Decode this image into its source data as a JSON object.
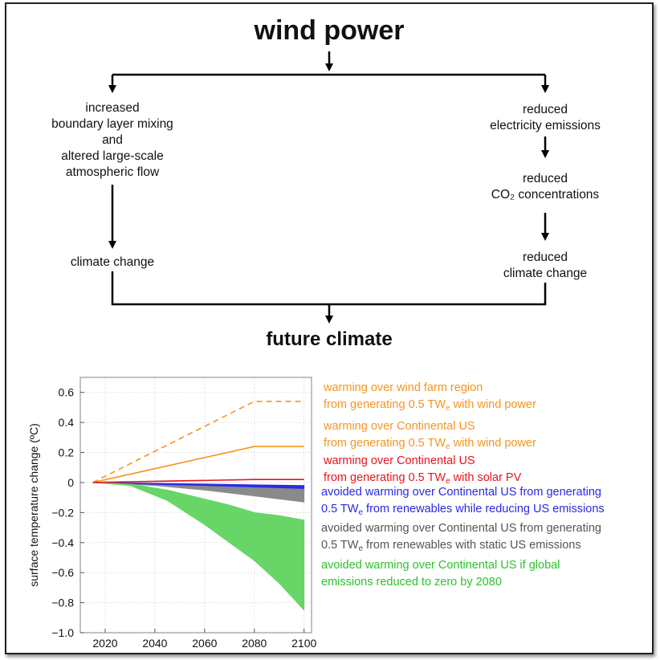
{
  "diagram": {
    "title": "wind power",
    "left_top": [
      "increased",
      "boundary layer mixing",
      "and",
      "altered large-scale",
      "atmospheric flow"
    ],
    "left_bottom": "climate change",
    "right_1": [
      "reduced",
      "electricity emissions"
    ],
    "right_2": [
      "reduced",
      "CO₂ concentrations"
    ],
    "right_3": [
      "reduced",
      "climate change"
    ],
    "bottom_title": "future climate"
  },
  "colors": {
    "orange": "#f7941d",
    "red": "#e8141c",
    "blue": "#2a2ae6",
    "gray": "#8a8a8a",
    "green": "#5fd45f",
    "gray_text": "#555555",
    "green_text": "#2ec02e"
  },
  "legend": {
    "wind_region": {
      "line1": "warming over wind farm region",
      "line2_pre": "from generating 0.5 TW",
      "line2_sub": "e",
      "line2_post": " with wind power"
    },
    "wind_us": {
      "line1": "warming over Continental US",
      "line2_pre": "from generating 0.5 TW",
      "line2_sub": "e",
      "line2_post": " with wind power"
    },
    "solar_us": {
      "line1": "warming over Continental US",
      "line2_pre": "from generating 0.5 TW",
      "line2_sub": "e",
      "line2_post": " with solar PV"
    },
    "renew_reduce": {
      "line1": "avoided warming over Continental US from generating",
      "line2_pre": "0.5 TW",
      "line2_sub": "e",
      "line2_post": " from renewables while reducing US emissions"
    },
    "renew_static": {
      "line1": "avoided warming over Continental US from generating",
      "line2_pre": "0.5 TW",
      "line2_sub": "e",
      "line2_post": " from renewables with static US emissions"
    },
    "global_zero": {
      "line1": "avoided warming over Continental US if global",
      "line2": "emissions reduced to zero by 2080"
    }
  },
  "chart_data": {
    "type": "line",
    "ylabel": "surface temperature change (ºC)",
    "xlabel": "",
    "xlim": [
      2010,
      2103
    ],
    "ylim": [
      -1.0,
      0.7
    ],
    "xticks": [
      2020,
      2040,
      2060,
      2080,
      2100
    ],
    "yticks": [
      0.6,
      0.4,
      0.2,
      0,
      -0.2,
      -0.4,
      -0.6,
      -0.8,
      -1.0
    ],
    "ytick_labels": [
      "0.6",
      "0.4",
      "0.2",
      "0",
      "−0.2",
      "−0.4",
      "−0.6",
      "−0.8",
      "−1.0"
    ],
    "grid": true,
    "series": [
      {
        "name": "warming over wind farm region",
        "style": "dashed",
        "color": "#f7941d",
        "x": [
          2015,
          2080,
          2100
        ],
        "y": [
          0,
          0.54,
          0.54
        ]
      },
      {
        "name": "warming over Continental US (wind power)",
        "style": "solid",
        "color": "#f7941d",
        "x": [
          2015,
          2080,
          2100
        ],
        "y": [
          0,
          0.24,
          0.24
        ]
      },
      {
        "name": "warming over Continental US (solar PV)",
        "style": "solid",
        "color": "#e8141c",
        "x": [
          2015,
          2080,
          2100
        ],
        "y": [
          0,
          0.02,
          0.02
        ]
      }
    ],
    "bands": [
      {
        "name": "avoided warming (renewables, static US emissions)",
        "color": "#8a8a8a",
        "x": [
          2015,
          2040,
          2060,
          2080,
          2100
        ],
        "upper": [
          0,
          -0.01,
          -0.02,
          -0.03,
          -0.04
        ],
        "lower": [
          0,
          -0.02,
          -0.05,
          -0.09,
          -0.13
        ]
      },
      {
        "name": "avoided warming (renewables, reducing US emissions)",
        "color": "#2a2ae6",
        "x": [
          2015,
          2040,
          2060,
          2080,
          2100
        ],
        "upper": [
          0,
          -0.005,
          -0.01,
          -0.015,
          -0.02
        ],
        "lower": [
          0,
          -0.012,
          -0.02,
          -0.03,
          -0.04
        ]
      },
      {
        "name": "avoided warming (global emissions to zero by 2080)",
        "color": "#5fd45f",
        "x": [
          2015,
          2030,
          2045,
          2060,
          2070,
          2080,
          2090,
          2100
        ],
        "upper": [
          0,
          -0.01,
          -0.05,
          -0.11,
          -0.15,
          -0.2,
          -0.22,
          -0.25
        ],
        "lower": [
          0,
          -0.02,
          -0.12,
          -0.28,
          -0.4,
          -0.52,
          -0.67,
          -0.85
        ]
      }
    ]
  }
}
